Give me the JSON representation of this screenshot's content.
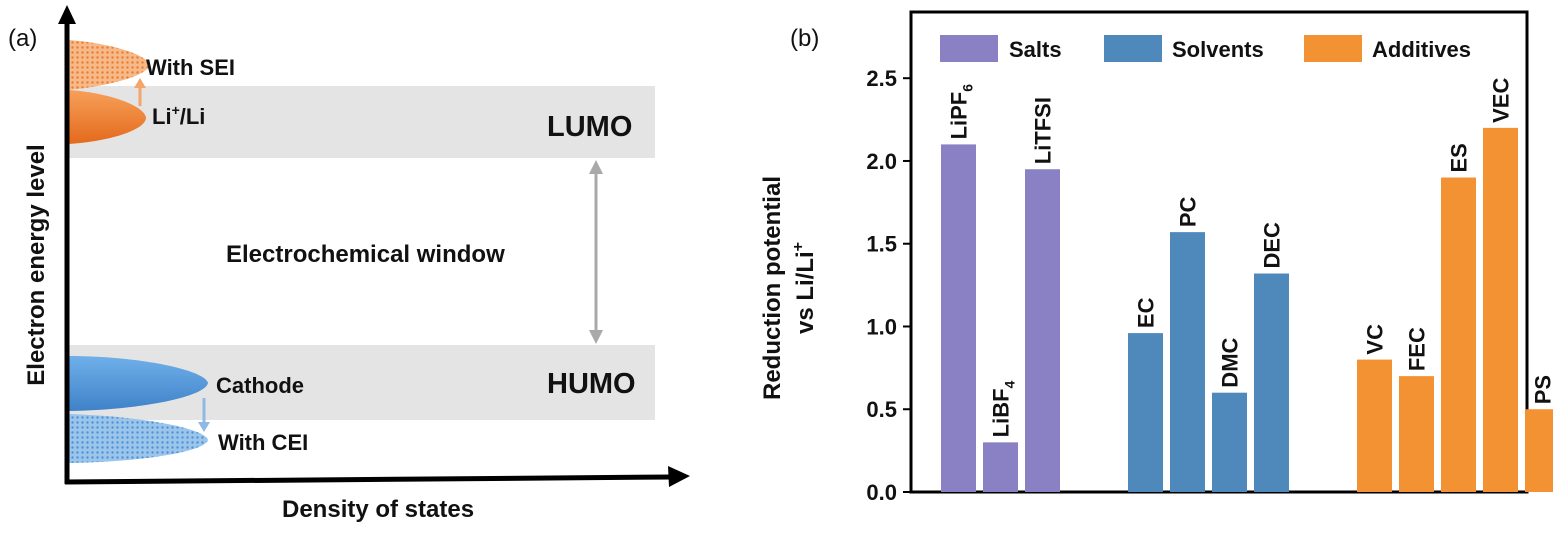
{
  "panel_a": {
    "panel_label": "(a)",
    "y_axis_label": "Electron energy level",
    "x_axis_label": "Density of states",
    "with_sei": "With SEI",
    "li_label_main": "Li",
    "li_label_sup": "+",
    "li_label_tail": "/Li",
    "lumo": "LUMO",
    "window_label": "Electrochemical window",
    "cathode": "Cathode",
    "humo": "HUMO",
    "with_cei": "With CEI",
    "colors": {
      "band": "#e4e4e4",
      "li_lobe": "#f07f2a",
      "cathode_lobe": "#4f93d6",
      "arrow": "#a9a9a9"
    }
  },
  "panel_b": {
    "panel_label": "(b)",
    "ylabel_line1": "Reduction potential",
    "ylabel_line2_main": "vs Li/Li",
    "ylabel_line2_sup": "+"
  },
  "chart_data": {
    "type": "bar",
    "ylabel": "Reduction potential vs Li/Li+",
    "ylim": [
      0,
      2.9
    ],
    "yticks": [
      0.0,
      0.5,
      1.0,
      1.5,
      2.0,
      2.5
    ],
    "ytick_labels": [
      "0.0",
      "0.5",
      "1.0",
      "1.5",
      "2.0",
      "2.5"
    ],
    "legend_position": "top",
    "series": [
      {
        "name": "Salts",
        "color": "#8a80c4",
        "bars": [
          {
            "label_main": "LiPF",
            "label_sub": "6",
            "value": 2.1
          },
          {
            "label_main": "LiBF",
            "label_sub": "4",
            "value": 0.3
          },
          {
            "label_main": "LiTFSI",
            "label_sub": "",
            "value": 1.95
          }
        ]
      },
      {
        "name": "Solvents",
        "color": "#4f88bb",
        "bars": [
          {
            "label_main": "EC",
            "label_sub": "",
            "value": 0.96
          },
          {
            "label_main": "PC",
            "label_sub": "",
            "value": 1.57
          },
          {
            "label_main": "DMC",
            "label_sub": "",
            "value": 0.6
          },
          {
            "label_main": "DEC",
            "label_sub": "",
            "value": 1.32
          }
        ]
      },
      {
        "name": "Additives",
        "color": "#f39232",
        "bars": [
          {
            "label_main": "VC",
            "label_sub": "",
            "value": 0.8
          },
          {
            "label_main": "FEC",
            "label_sub": "",
            "value": 0.7
          },
          {
            "label_main": "ES",
            "label_sub": "",
            "value": 1.9
          },
          {
            "label_main": "VEC",
            "label_sub": "",
            "value": 2.2
          },
          {
            "label_main": "PS",
            "label_sub": "",
            "value": 0.5
          }
        ]
      }
    ]
  }
}
